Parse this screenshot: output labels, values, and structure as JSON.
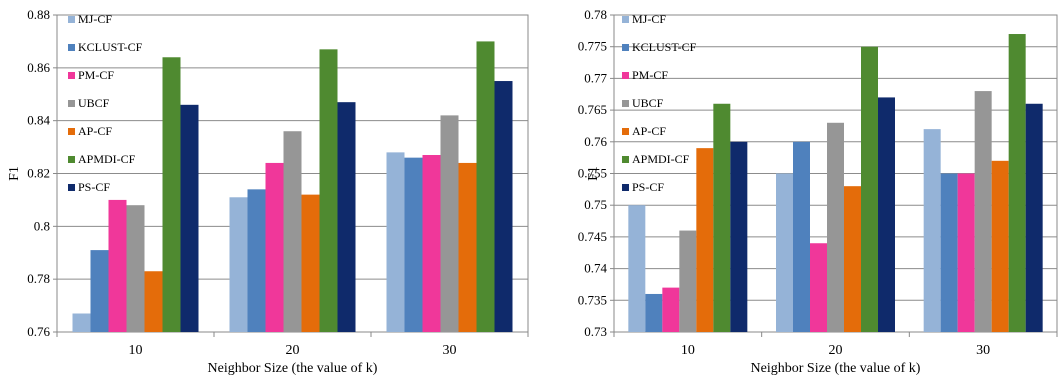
{
  "series_colors": [
    "#95B3D7",
    "#4F81BD",
    "#F0379A",
    "#969696",
    "#E46C0A",
    "#4F8A30",
    "#0F2A6B"
  ],
  "chart_data": [
    {
      "type": "bar",
      "title": "",
      "xlabel": "Neighbor Size (the value of k)",
      "ylabel": "F1",
      "categories": [
        "10",
        "20",
        "30"
      ],
      "ylim": [
        0.76,
        0.88
      ],
      "yticks": [
        "0.76",
        "0.78",
        "0.8",
        "0.82",
        "0.84",
        "0.86",
        "0.88"
      ],
      "grid": true,
      "legend_position": "top-left (inside)",
      "series": [
        {
          "name": "MJ-CF",
          "values": [
            0.767,
            0.811,
            0.828
          ]
        },
        {
          "name": "KCLUST-CF",
          "values": [
            0.791,
            0.814,
            0.826
          ]
        },
        {
          "name": "PM-CF",
          "values": [
            0.81,
            0.824,
            0.827
          ]
        },
        {
          "name": "UBCF",
          "values": [
            0.808,
            0.836,
            0.842
          ]
        },
        {
          "name": "AP-CF",
          "values": [
            0.783,
            0.812,
            0.824
          ]
        },
        {
          "name": "APMDI-CF",
          "values": [
            0.864,
            0.867,
            0.87
          ]
        },
        {
          "name": "PS-CF",
          "values": [
            0.846,
            0.847,
            0.855
          ]
        }
      ]
    },
    {
      "type": "bar",
      "title": "",
      "xlabel": "Neighbor Size (the value of k)",
      "ylabel": "F1",
      "categories": [
        "10",
        "20",
        "30"
      ],
      "ylim": [
        0.73,
        0.78
      ],
      "yticks": [
        "0.73",
        "0.735",
        "0.74",
        "0.745",
        "0.75",
        "0.755",
        "0.76",
        "0.765",
        "0.77",
        "0.775",
        "0.78"
      ],
      "grid": true,
      "legend_position": "top-left (inside)",
      "series": [
        {
          "name": "MJ-CF",
          "values": [
            0.75,
            0.755,
            0.762
          ]
        },
        {
          "name": "KCLUST-CF",
          "values": [
            0.736,
            0.76,
            0.755
          ]
        },
        {
          "name": "PM-CF",
          "values": [
            0.737,
            0.744,
            0.755
          ]
        },
        {
          "name": "UBCF",
          "values": [
            0.746,
            0.763,
            0.768
          ]
        },
        {
          "name": "AP-CF",
          "values": [
            0.759,
            0.753,
            0.757
          ]
        },
        {
          "name": "APMDI-CF",
          "values": [
            0.766,
            0.775,
            0.777
          ]
        },
        {
          "name": "PS-CF",
          "values": [
            0.76,
            0.767,
            0.766
          ]
        }
      ]
    }
  ]
}
